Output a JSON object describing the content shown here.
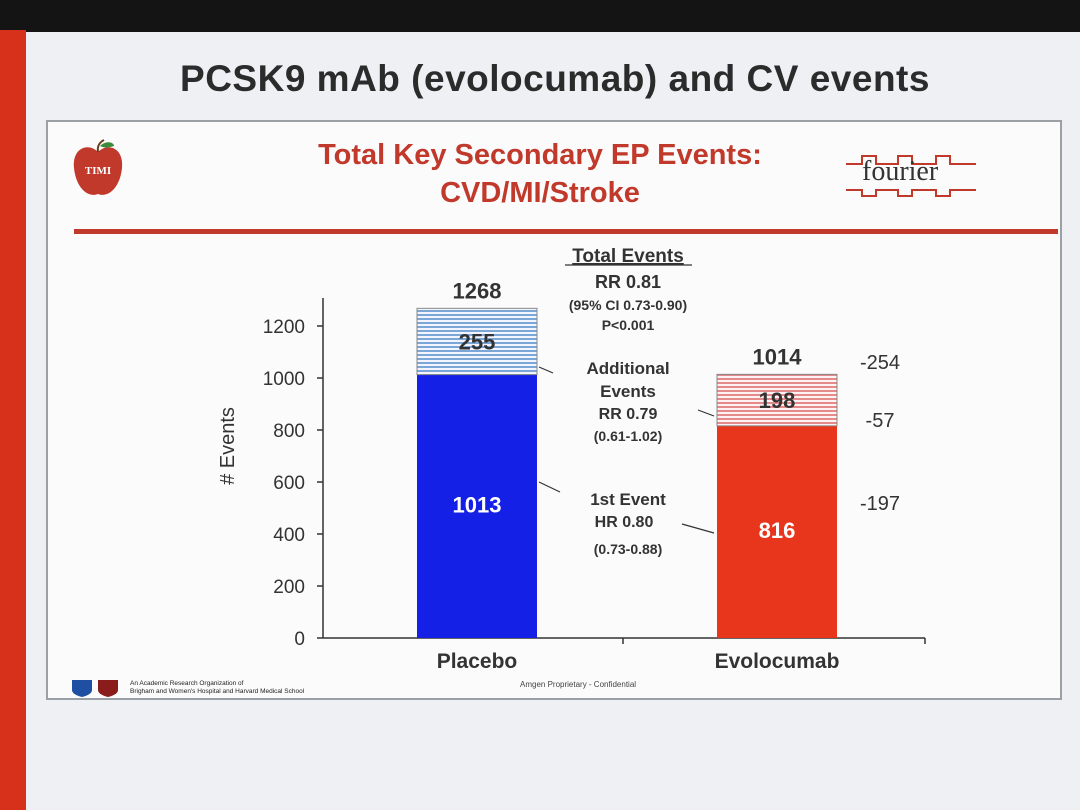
{
  "slide": {
    "title": "PCSK9 mAb (evolocumab) and CV events",
    "logo_left": "TIMI",
    "logo_right": "fourier",
    "footer_line1": "An Academic Research Organization of",
    "footer_line2": "Brigham and Women's Hospital and Harvard Medical School",
    "confidential": "Amgen Proprietary - Confidential"
  },
  "colors": {
    "placebo": "#1520e6",
    "evolocumab": "#e8361c",
    "title_red": "#c0392b"
  },
  "chart_data": {
    "type": "bar",
    "stacked": true,
    "title": "Total Key Secondary EP Events:",
    "subtitle": "CVD/MI/Stroke",
    "ylabel": "# Events",
    "xlabel": "",
    "ylim": [
      0,
      1300
    ],
    "yticks": [
      0,
      200,
      400,
      600,
      800,
      1000,
      1200
    ],
    "categories": [
      "Placebo",
      "Evolocumab"
    ],
    "series": [
      {
        "name": "1st Event",
        "values": [
          1013,
          816
        ]
      },
      {
        "name": "Additional Events",
        "values": [
          255,
          198
        ]
      }
    ],
    "totals": [
      1268,
      1014
    ],
    "differences": [
      "-254",
      "-57",
      "-197"
    ],
    "annotations": {
      "total_heading": "Total Events",
      "total_rr": "RR 0.81",
      "total_ci": "(95% CI 0.73-0.90)",
      "total_p": "P<0.001",
      "additional_line1": "Additional",
      "additional_line2": "Events",
      "additional_rr": "RR 0.79",
      "additional_ci": "(0.61-1.02)",
      "first_line1": "1st Event",
      "first_hr": "HR 0.80",
      "first_ci": "(0.73-0.88)"
    }
  }
}
